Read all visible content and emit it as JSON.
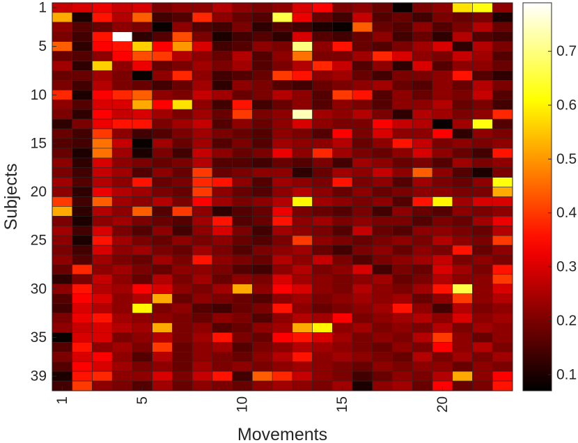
{
  "chart_data": {
    "type": "heatmap",
    "title": "",
    "xlabel": "Movements",
    "ylabel": "Subjects",
    "colormap": "hot",
    "colorbar": {
      "min": 0.07,
      "max": 0.79,
      "ticks": [
        0.1,
        0.2,
        0.3,
        0.4,
        0.5,
        0.6,
        0.7
      ],
      "tick_labels": [
        "0.1",
        "0.2",
        "0.3",
        "0.4",
        "0.5",
        "0.6",
        "0.7"
      ]
    },
    "x_ticks": [
      1,
      5,
      10,
      15,
      20
    ],
    "x_tick_labels": [
      "1",
      "5",
      "10",
      "15",
      "20"
    ],
    "y_ticks": [
      1,
      5,
      10,
      15,
      20,
      25,
      30,
      35,
      39
    ],
    "y_tick_labels": [
      "1",
      "5",
      "10",
      "15",
      "20",
      "25",
      "30",
      "35",
      "39"
    ],
    "n_movements": 23,
    "n_subjects": 40,
    "values": [
      [
        0.28,
        0.3,
        0.32,
        0.28,
        0.3,
        0.2,
        0.22,
        0.22,
        0.26,
        0.22,
        0.2,
        0.22,
        0.3,
        0.34,
        0.2,
        0.22,
        0.18,
        0.08,
        0.2,
        0.22,
        0.58,
        0.62,
        0.22
      ],
      [
        0.52,
        0.1,
        0.36,
        0.26,
        0.44,
        0.14,
        0.16,
        0.38,
        0.22,
        0.18,
        0.16,
        0.66,
        0.32,
        0.18,
        0.14,
        0.28,
        0.16,
        0.18,
        0.14,
        0.2,
        0.18,
        0.2,
        0.1
      ],
      [
        0.22,
        0.16,
        0.18,
        0.22,
        0.2,
        0.08,
        0.22,
        0.16,
        0.14,
        0.2,
        0.12,
        0.16,
        0.14,
        0.1,
        0.08,
        0.44,
        0.18,
        0.16,
        0.22,
        0.16,
        0.2,
        0.26,
        0.18
      ],
      [
        0.2,
        0.14,
        0.36,
        0.79,
        0.12,
        0.16,
        0.42,
        0.2,
        0.1,
        0.14,
        0.16,
        0.12,
        0.3,
        0.16,
        0.14,
        0.18,
        0.22,
        0.14,
        0.18,
        0.12,
        0.26,
        0.16,
        0.14
      ],
      [
        0.44,
        0.12,
        0.34,
        0.36,
        0.56,
        0.34,
        0.5,
        0.3,
        0.14,
        0.16,
        0.22,
        0.2,
        0.7,
        0.22,
        0.36,
        0.18,
        0.16,
        0.2,
        0.24,
        0.3,
        0.12,
        0.26,
        0.2
      ],
      [
        0.18,
        0.16,
        0.22,
        0.34,
        0.42,
        0.4,
        0.26,
        0.22,
        0.18,
        0.26,
        0.16,
        0.22,
        0.46,
        0.2,
        0.2,
        0.24,
        0.38,
        0.3,
        0.22,
        0.2,
        0.28,
        0.24,
        0.16
      ],
      [
        0.24,
        0.12,
        0.56,
        0.22,
        0.32,
        0.18,
        0.2,
        0.24,
        0.2,
        0.24,
        0.16,
        0.2,
        0.26,
        0.38,
        0.28,
        0.16,
        0.22,
        0.12,
        0.3,
        0.16,
        0.22,
        0.22,
        0.18
      ],
      [
        0.18,
        0.18,
        0.24,
        0.2,
        0.08,
        0.22,
        0.38,
        0.22,
        0.14,
        0.16,
        0.18,
        0.4,
        0.36,
        0.22,
        0.24,
        0.18,
        0.14,
        0.2,
        0.2,
        0.22,
        0.36,
        0.16,
        0.12
      ],
      [
        0.2,
        0.14,
        0.26,
        0.2,
        0.18,
        0.14,
        0.18,
        0.24,
        0.12,
        0.22,
        0.2,
        0.16,
        0.14,
        0.18,
        0.2,
        0.22,
        0.24,
        0.18,
        0.16,
        0.22,
        0.18,
        0.26,
        0.2
      ],
      [
        0.38,
        0.1,
        0.34,
        0.38,
        0.44,
        0.22,
        0.2,
        0.28,
        0.24,
        0.18,
        0.2,
        0.26,
        0.22,
        0.16,
        0.4,
        0.36,
        0.16,
        0.22,
        0.18,
        0.22,
        0.2,
        0.28,
        0.16
      ],
      [
        0.22,
        0.16,
        0.3,
        0.3,
        0.52,
        0.34,
        0.58,
        0.22,
        0.14,
        0.36,
        0.14,
        0.18,
        0.22,
        0.16,
        0.22,
        0.2,
        0.16,
        0.22,
        0.22,
        0.26,
        0.18,
        0.2,
        0.14
      ],
      [
        0.2,
        0.12,
        0.34,
        0.28,
        0.3,
        0.24,
        0.2,
        0.24,
        0.18,
        0.4,
        0.2,
        0.22,
        0.74,
        0.24,
        0.22,
        0.26,
        0.2,
        0.12,
        0.26,
        0.24,
        0.2,
        0.22,
        0.38
      ],
      [
        0.12,
        0.2,
        0.32,
        0.36,
        0.36,
        0.2,
        0.24,
        0.28,
        0.16,
        0.22,
        0.18,
        0.22,
        0.3,
        0.22,
        0.2,
        0.2,
        0.34,
        0.28,
        0.26,
        0.08,
        0.24,
        0.62,
        0.16
      ],
      [
        0.18,
        0.14,
        0.4,
        0.22,
        0.14,
        0.16,
        0.2,
        0.24,
        0.2,
        0.18,
        0.16,
        0.22,
        0.2,
        0.16,
        0.34,
        0.2,
        0.3,
        0.22,
        0.22,
        0.34,
        0.12,
        0.22,
        0.2
      ],
      [
        0.16,
        0.14,
        0.46,
        0.28,
        0.08,
        0.24,
        0.18,
        0.24,
        0.16,
        0.2,
        0.16,
        0.24,
        0.22,
        0.22,
        0.26,
        0.18,
        0.22,
        0.36,
        0.28,
        0.2,
        0.22,
        0.2,
        0.22
      ],
      [
        0.18,
        0.1,
        0.46,
        0.24,
        0.1,
        0.2,
        0.14,
        0.28,
        0.22,
        0.18,
        0.2,
        0.32,
        0.22,
        0.38,
        0.24,
        0.2,
        0.18,
        0.22,
        0.3,
        0.22,
        0.18,
        0.14,
        0.36
      ],
      [
        0.22,
        0.12,
        0.3,
        0.22,
        0.2,
        0.18,
        0.2,
        0.26,
        0.16,
        0.16,
        0.14,
        0.18,
        0.16,
        0.2,
        0.14,
        0.24,
        0.22,
        0.18,
        0.2,
        0.16,
        0.24,
        0.2,
        0.22
      ],
      [
        0.2,
        0.14,
        0.28,
        0.24,
        0.16,
        0.22,
        0.18,
        0.4,
        0.18,
        0.2,
        0.22,
        0.22,
        0.12,
        0.18,
        0.24,
        0.22,
        0.28,
        0.22,
        0.44,
        0.22,
        0.16,
        0.1,
        0.2
      ],
      [
        0.24,
        0.16,
        0.26,
        0.22,
        0.36,
        0.18,
        0.2,
        0.38,
        0.36,
        0.22,
        0.16,
        0.24,
        0.22,
        0.2,
        0.36,
        0.2,
        0.22,
        0.16,
        0.24,
        0.2,
        0.18,
        0.22,
        0.62
      ],
      [
        0.22,
        0.12,
        0.32,
        0.26,
        0.24,
        0.2,
        0.18,
        0.4,
        0.22,
        0.18,
        0.16,
        0.22,
        0.26,
        0.22,
        0.18,
        0.22,
        0.18,
        0.2,
        0.22,
        0.22,
        0.2,
        0.2,
        0.52
      ],
      [
        0.4,
        0.14,
        0.44,
        0.24,
        0.22,
        0.26,
        0.2,
        0.34,
        0.24,
        0.2,
        0.22,
        0.26,
        0.6,
        0.24,
        0.22,
        0.2,
        0.22,
        0.16,
        0.36,
        0.6,
        0.24,
        0.3,
        0.3
      ],
      [
        0.52,
        0.12,
        0.26,
        0.22,
        0.44,
        0.16,
        0.4,
        0.22,
        0.12,
        0.16,
        0.18,
        0.32,
        0.2,
        0.18,
        0.16,
        0.2,
        0.14,
        0.22,
        0.18,
        0.16,
        0.22,
        0.2,
        0.22
      ],
      [
        0.2,
        0.1,
        0.22,
        0.24,
        0.2,
        0.18,
        0.16,
        0.24,
        0.36,
        0.16,
        0.18,
        0.36,
        0.22,
        0.24,
        0.2,
        0.22,
        0.2,
        0.2,
        0.16,
        0.2,
        0.18,
        0.24,
        0.32
      ],
      [
        0.24,
        0.14,
        0.3,
        0.2,
        0.16,
        0.22,
        0.14,
        0.22,
        0.3,
        0.2,
        0.14,
        0.24,
        0.22,
        0.2,
        0.16,
        0.28,
        0.18,
        0.16,
        0.22,
        0.22,
        0.2,
        0.18,
        0.26
      ],
      [
        0.22,
        0.1,
        0.36,
        0.24,
        0.2,
        0.18,
        0.22,
        0.2,
        0.22,
        0.18,
        0.16,
        0.2,
        0.4,
        0.22,
        0.2,
        0.18,
        0.2,
        0.22,
        0.2,
        0.26,
        0.22,
        0.2,
        0.4
      ],
      [
        0.2,
        0.14,
        0.3,
        0.22,
        0.24,
        0.2,
        0.18,
        0.24,
        0.2,
        0.16,
        0.2,
        0.22,
        0.24,
        0.18,
        0.14,
        0.2,
        0.22,
        0.18,
        0.22,
        0.2,
        0.36,
        0.18,
        0.22
      ],
      [
        0.22,
        0.16,
        0.24,
        0.2,
        0.18,
        0.24,
        0.2,
        0.36,
        0.22,
        0.2,
        0.18,
        0.26,
        0.22,
        0.28,
        0.2,
        0.16,
        0.2,
        0.22,
        0.24,
        0.28,
        0.2,
        0.22,
        0.2
      ],
      [
        0.18,
        0.38,
        0.22,
        0.24,
        0.2,
        0.18,
        0.22,
        0.22,
        0.2,
        0.16,
        0.14,
        0.22,
        0.26,
        0.2,
        0.22,
        0.3,
        0.14,
        0.2,
        0.18,
        0.3,
        0.24,
        0.2,
        0.36
      ],
      [
        0.12,
        0.2,
        0.28,
        0.22,
        0.18,
        0.26,
        0.2,
        0.24,
        0.18,
        0.22,
        0.2,
        0.3,
        0.24,
        0.22,
        0.2,
        0.22,
        0.24,
        0.18,
        0.2,
        0.26,
        0.22,
        0.22,
        0.4
      ],
      [
        0.22,
        0.36,
        0.26,
        0.24,
        0.34,
        0.3,
        0.22,
        0.2,
        0.24,
        0.52,
        0.22,
        0.34,
        0.3,
        0.22,
        0.2,
        0.26,
        0.22,
        0.2,
        0.24,
        0.36,
        0.66,
        0.22,
        0.3
      ],
      [
        0.16,
        0.34,
        0.3,
        0.22,
        0.26,
        0.52,
        0.18,
        0.22,
        0.2,
        0.18,
        0.16,
        0.22,
        0.24,
        0.2,
        0.22,
        0.24,
        0.22,
        0.24,
        0.18,
        0.22,
        0.4,
        0.22,
        0.26
      ],
      [
        0.14,
        0.3,
        0.26,
        0.22,
        0.6,
        0.2,
        0.22,
        0.16,
        0.14,
        0.18,
        0.2,
        0.36,
        0.22,
        0.18,
        0.2,
        0.22,
        0.24,
        0.36,
        0.22,
        0.14,
        0.26,
        0.2,
        0.22
      ],
      [
        0.2,
        0.32,
        0.36,
        0.24,
        0.22,
        0.22,
        0.2,
        0.18,
        0.22,
        0.2,
        0.16,
        0.22,
        0.26,
        0.24,
        0.34,
        0.2,
        0.22,
        0.24,
        0.26,
        0.22,
        0.3,
        0.22,
        0.24
      ],
      [
        0.22,
        0.28,
        0.3,
        0.26,
        0.24,
        0.52,
        0.2,
        0.22,
        0.16,
        0.18,
        0.22,
        0.24,
        0.52,
        0.6,
        0.22,
        0.24,
        0.2,
        0.22,
        0.2,
        0.26,
        0.2,
        0.24,
        0.22
      ],
      [
        0.08,
        0.3,
        0.3,
        0.2,
        0.22,
        0.26,
        0.2,
        0.24,
        0.36,
        0.2,
        0.18,
        0.34,
        0.36,
        0.3,
        0.24,
        0.2,
        0.22,
        0.2,
        0.26,
        0.4,
        0.22,
        0.18,
        0.22
      ],
      [
        0.16,
        0.36,
        0.22,
        0.24,
        0.2,
        0.4,
        0.18,
        0.22,
        0.24,
        0.16,
        0.2,
        0.22,
        0.26,
        0.24,
        0.22,
        0.2,
        0.18,
        0.22,
        0.2,
        0.34,
        0.22,
        0.26,
        0.2
      ],
      [
        0.2,
        0.3,
        0.34,
        0.22,
        0.16,
        0.26,
        0.18,
        0.22,
        0.2,
        0.18,
        0.22,
        0.26,
        0.36,
        0.22,
        0.24,
        0.22,
        0.2,
        0.18,
        0.26,
        0.2,
        0.24,
        0.2,
        0.24
      ],
      [
        0.16,
        0.34,
        0.3,
        0.24,
        0.2,
        0.22,
        0.18,
        0.24,
        0.2,
        0.22,
        0.2,
        0.22,
        0.24,
        0.22,
        0.2,
        0.18,
        0.22,
        0.2,
        0.22,
        0.22,
        0.18,
        0.22,
        0.2
      ],
      [
        0.1,
        0.36,
        0.38,
        0.22,
        0.22,
        0.3,
        0.2,
        0.28,
        0.36,
        0.14,
        0.44,
        0.38,
        0.28,
        0.22,
        0.2,
        0.14,
        0.18,
        0.22,
        0.2,
        0.26,
        0.52,
        0.22,
        0.34
      ],
      [
        0.14,
        0.4,
        0.22,
        0.2,
        0.16,
        0.24,
        0.18,
        0.22,
        0.2,
        0.18,
        0.22,
        0.24,
        0.22,
        0.2,
        0.24,
        0.1,
        0.22,
        0.24,
        0.18,
        0.34,
        0.18,
        0.2,
        0.36
      ]
    ]
  }
}
